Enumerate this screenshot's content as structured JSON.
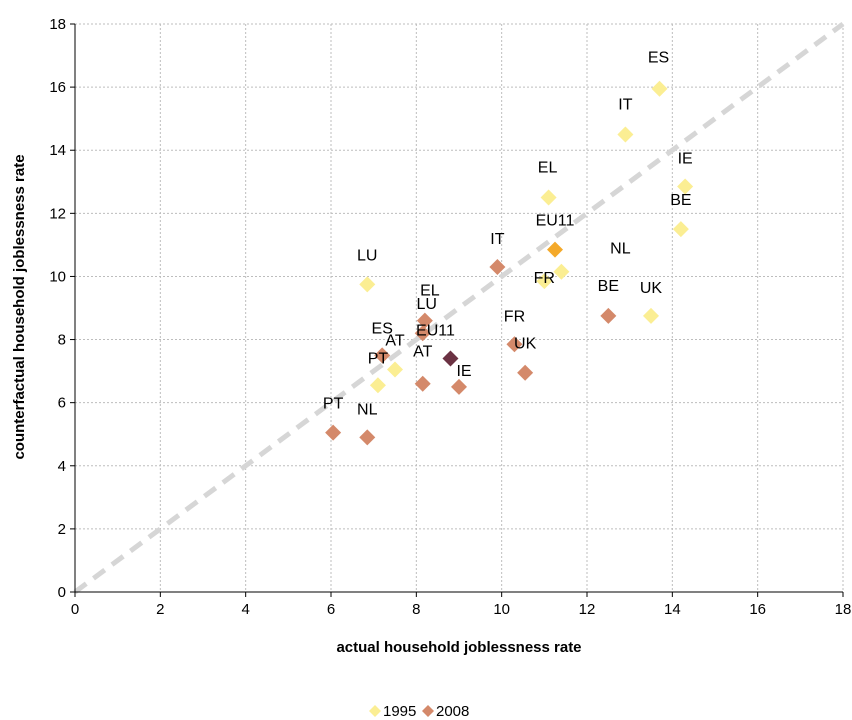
{
  "chart_data": {
    "type": "scatter",
    "xlabel": "actual household joblessness rate",
    "ylabel": "counterfactual household joblessness rate",
    "xlim": [
      0,
      18
    ],
    "ylim": [
      0,
      18
    ],
    "x_ticks": [
      0,
      2,
      4,
      6,
      8,
      10,
      12,
      14,
      16,
      18
    ],
    "y_ticks": [
      0,
      2,
      4,
      6,
      8,
      10,
      12,
      14,
      16,
      18
    ],
    "grid": "dotted",
    "diagonal": true,
    "legend_placement": "bottom",
    "series": [
      {
        "name": "1995",
        "color": "#fbee93",
        "points": [
          {
            "label": "ES",
            "x": 13.7,
            "y": 15.95
          },
          {
            "label": "IT",
            "x": 12.9,
            "y": 14.5
          },
          {
            "label": "IE",
            "x": 14.3,
            "y": 12.85
          },
          {
            "label": "EL",
            "x": 11.1,
            "y": 12.5
          },
          {
            "label": "BE",
            "x": 14.2,
            "y": 11.5
          },
          {
            "label": "FR",
            "x": 11.0,
            "y": 9.85
          },
          {
            "label": "NL",
            "x": 11.4,
            "y": 10.15
          },
          {
            "label": "UK",
            "x": 13.5,
            "y": 8.75
          },
          {
            "label": "LU",
            "x": 6.85,
            "y": 9.75
          },
          {
            "label": "AT",
            "x": 7.5,
            "y": 7.05
          },
          {
            "label": "PT",
            "x": 7.1,
            "y": 6.55
          }
        ]
      },
      {
        "name": "2008",
        "color": "#d4896a",
        "points": [
          {
            "label": "IT",
            "x": 9.9,
            "y": 10.3
          },
          {
            "label": "BE",
            "x": 12.5,
            "y": 8.75
          },
          {
            "label": "FR",
            "x": 10.3,
            "y": 7.85
          },
          {
            "label": "UK",
            "x": 10.55,
            "y": 6.95
          },
          {
            "label": "EL",
            "x": 8.2,
            "y": 8.6
          },
          {
            "label": "LU",
            "x": 8.15,
            "y": 8.2
          },
          {
            "label": "ES",
            "x": 7.2,
            "y": 7.5
          },
          {
            "label": "AT",
            "x": 8.15,
            "y": 6.6
          },
          {
            "label": "IE",
            "x": 9.0,
            "y": 6.5
          },
          {
            "label": "PT",
            "x": 6.05,
            "y": 5.05
          },
          {
            "label": "NL",
            "x": 6.85,
            "y": 4.9
          }
        ]
      }
    ],
    "extra_points": [
      {
        "label": "EU11",
        "x": 11.25,
        "y": 10.85,
        "color": "#f4a92a"
      },
      {
        "label": "EU11",
        "x": 8.8,
        "y": 7.4,
        "color": "#6b3243"
      }
    ]
  }
}
